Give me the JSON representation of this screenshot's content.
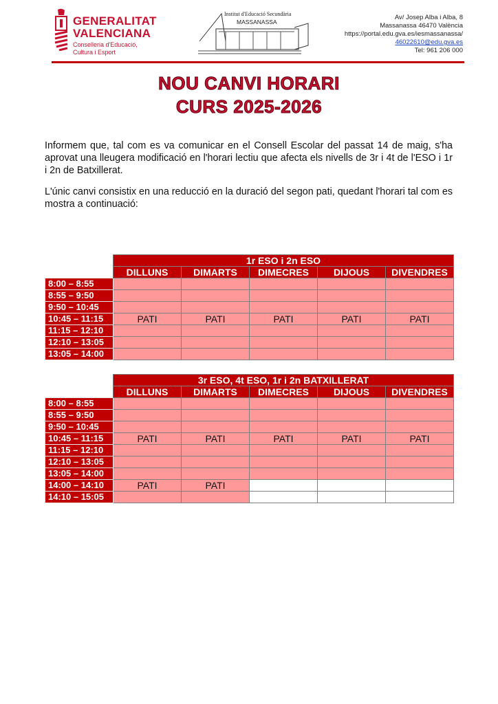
{
  "header": {
    "logo_text": [
      "GENERALITAT",
      "VALENCIANA",
      "Conselleria d'Educació,",
      "Cultura i Esport"
    ],
    "school_logo_text": [
      "Institut d'Educació Secundària",
      "MASSANASSA"
    ],
    "address": [
      "Av/ Josep Alba i Alba, 8",
      "Massanassa 46470 València",
      "https://portal.edu.gva.es/iesmassanassa/"
    ],
    "email": "46022610@edu.gva.es",
    "phone": "Tel: 961 206 000"
  },
  "title": {
    "line1": "NOU CANVI HORARI",
    "line2": "CURS 2025-2026"
  },
  "paragraphs": [
    "Informem que, tal com es va comunicar en el Consell Escolar del passat 14 de maig, s'ha aprovat una lleugera modificació en l'horari lectiu que afecta els nivells de 3r i 4t de l'ESO i 1r i 2n de Batxillerat.",
    "L'únic canvi consistix en una reducció en la duració del segon pati, quedant l'horari tal com es mostra a continuació:"
  ],
  "colors": {
    "header_red": "#c00000",
    "cell_pink": "#ff9999"
  },
  "days": [
    "DILLUNS",
    "DIMARTS",
    "DIMECRES",
    "DIJOUS",
    "DIVENDRES"
  ],
  "tables": [
    {
      "group": "1r ESO i 2n ESO",
      "rows": [
        {
          "time": "8:00 – 8:55",
          "cells": [
            "",
            "",
            "",
            "",
            ""
          ]
        },
        {
          "time": "8:55 – 9:50",
          "cells": [
            "",
            "",
            "",
            "",
            ""
          ]
        },
        {
          "time": "9:50 – 10:45",
          "cells": [
            "",
            "",
            "",
            "",
            ""
          ]
        },
        {
          "time": "10:45 – 11:15",
          "cells": [
            "PATI",
            "PATI",
            "PATI",
            "PATI",
            "PATI"
          ]
        },
        {
          "time": "11:15 – 12:10",
          "cells": [
            "",
            "",
            "",
            "",
            ""
          ]
        },
        {
          "time": "12:10 – 13:05",
          "cells": [
            "",
            "",
            "",
            "",
            ""
          ]
        },
        {
          "time": "13:05 – 14:00",
          "cells": [
            "",
            "",
            "",
            "",
            ""
          ]
        }
      ]
    },
    {
      "group": "3r ESO, 4t ESO, 1r i 2n BATXILLERAT",
      "rows": [
        {
          "time": "8:00 – 8:55",
          "cells": [
            "",
            "",
            "",
            "",
            ""
          ]
        },
        {
          "time": "8:55 – 9:50",
          "cells": [
            "",
            "",
            "",
            "",
            ""
          ]
        },
        {
          "time": "9:50 – 10:45",
          "cells": [
            "",
            "",
            "",
            "",
            ""
          ]
        },
        {
          "time": "10:45 – 11:15",
          "cells": [
            "PATI",
            "PATI",
            "PATI",
            "PATI",
            "PATI"
          ]
        },
        {
          "time": "11:15 – 12:10",
          "cells": [
            "",
            "",
            "",
            "",
            ""
          ]
        },
        {
          "time": "12:10 – 13:05",
          "cells": [
            "",
            "",
            "",
            "",
            ""
          ]
        },
        {
          "time": "13:05 – 14:00",
          "cells": [
            "",
            "",
            "",
            "",
            ""
          ]
        },
        {
          "time": "14:00 – 14:10",
          "cells": [
            "PATI",
            "PATI",
            null,
            null,
            null
          ]
        },
        {
          "time": "14:10 – 15:05",
          "cells": [
            "",
            "",
            null,
            null,
            null
          ]
        }
      ]
    }
  ]
}
